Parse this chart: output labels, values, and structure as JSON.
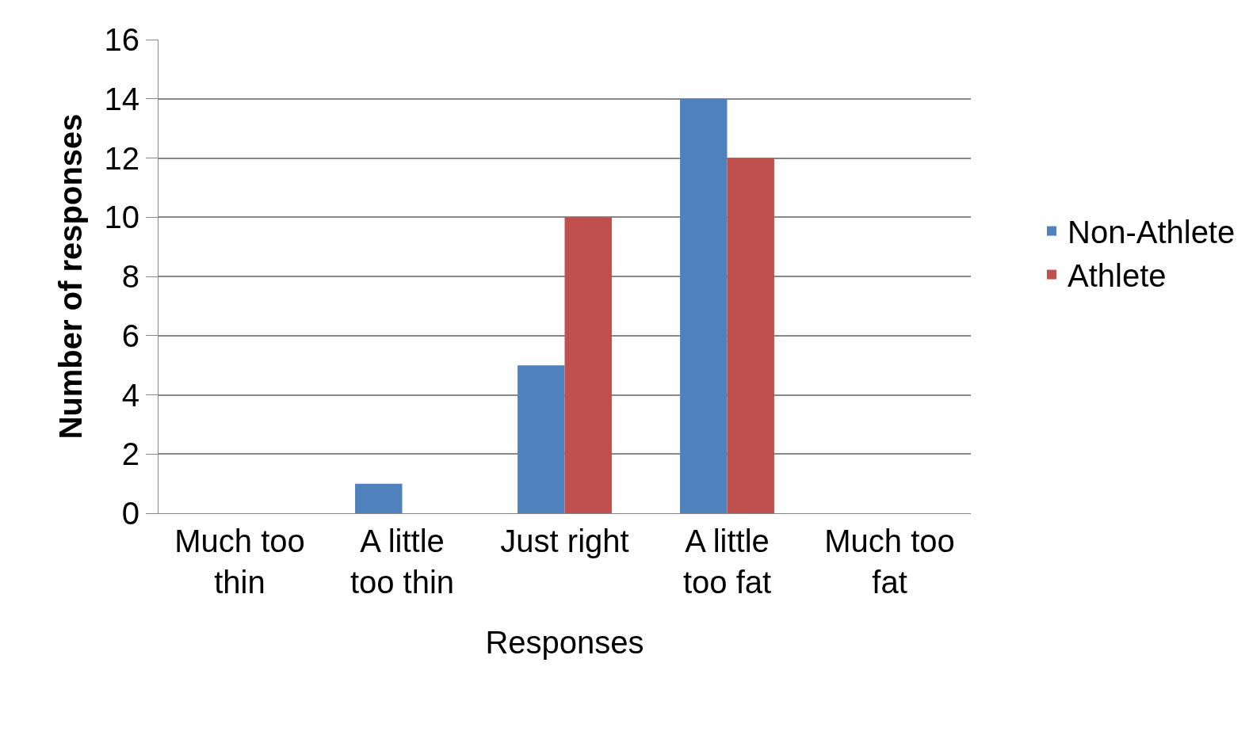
{
  "chart_data": {
    "type": "bar",
    "xlabel": "Responses",
    "ylabel": "Number of responses",
    "categories": [
      "Much too thin",
      "A little too thin",
      "Just right",
      "A little too fat",
      "Much too fat"
    ],
    "series": [
      {
        "name": "Non-Athlete",
        "color": "#4f81bd",
        "values": [
          0,
          1,
          5,
          14,
          0
        ]
      },
      {
        "name": "Athlete",
        "color": "#c0504d",
        "values": [
          0,
          0,
          10,
          12,
          0
        ]
      }
    ],
    "ylim": [
      0,
      16
    ],
    "yticks": [
      0,
      2,
      4,
      6,
      8,
      10,
      12,
      14,
      16
    ],
    "grid": "y",
    "legend": "right"
  }
}
